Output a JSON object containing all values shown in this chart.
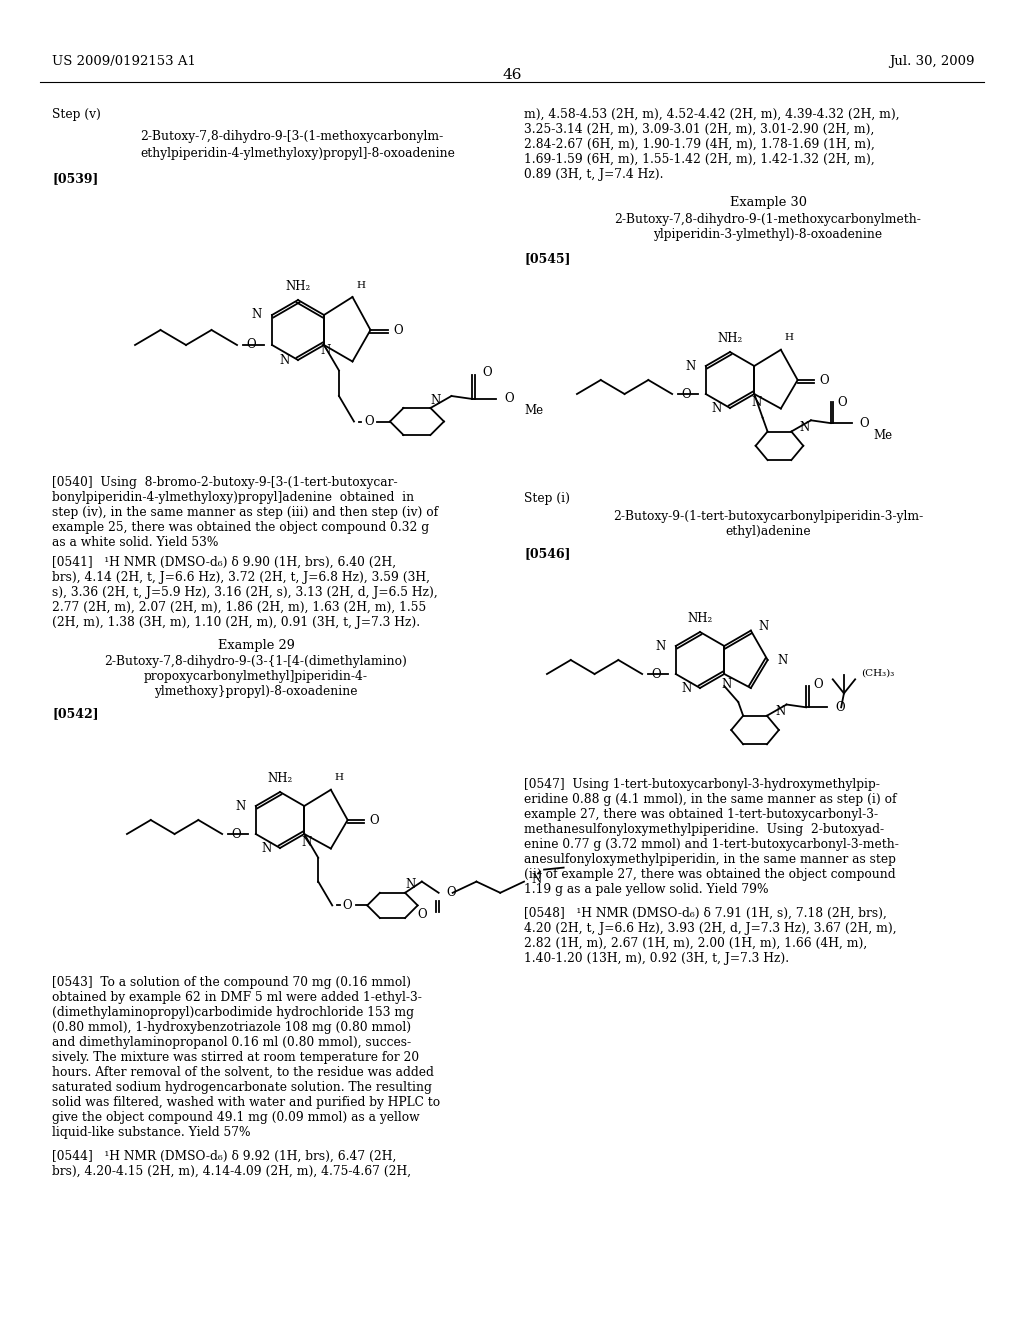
{
  "bg_color": "#ffffff",
  "page_number": "46",
  "header_left": "US 2009/0192153 A1",
  "header_right": "Jul. 30, 2009"
}
